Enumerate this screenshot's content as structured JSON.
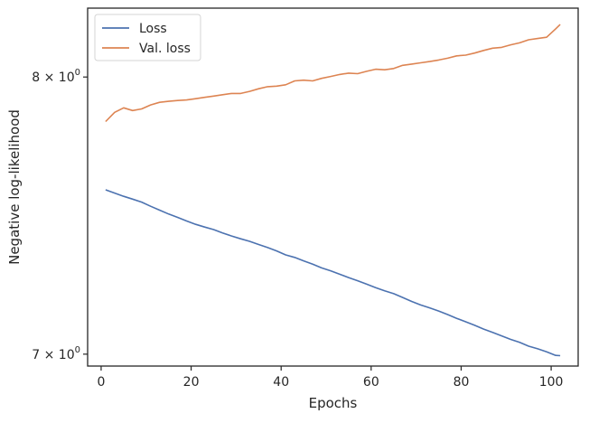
{
  "chart_data": {
    "type": "line",
    "title": "",
    "xlabel": "Epochs",
    "ylabel": "Negative log-likelihood",
    "yscale": "log",
    "xlim": [
      -3,
      106
    ],
    "ylim": [
      6.96,
      8.27
    ],
    "grid": false,
    "legend_position": "top-left",
    "xticks": [
      0,
      20,
      40,
      60,
      80,
      100
    ],
    "xtick_labels": [
      "0",
      "20",
      "40",
      "60",
      "80",
      "100"
    ],
    "yticks": [
      7,
      8
    ],
    "ytick_labels": [
      {
        "mantissa": "7",
        "base": "10",
        "exp": "0"
      },
      {
        "mantissa": "8",
        "base": "10",
        "exp": "0"
      }
    ],
    "series": [
      {
        "name": "Loss",
        "color": "#4c72b0",
        "x": [
          1,
          3,
          5,
          7,
          9,
          11,
          13,
          15,
          17,
          19,
          21,
          23,
          25,
          27,
          29,
          31,
          33,
          35,
          37,
          39,
          41,
          43,
          45,
          47,
          49,
          51,
          53,
          55,
          57,
          59,
          61,
          63,
          65,
          67,
          69,
          71,
          73,
          75,
          77,
          79,
          81,
          83,
          85,
          87,
          89,
          91,
          93,
          95,
          97,
          99,
          101,
          102
        ],
        "y": [
          7.577,
          7.565,
          7.553,
          7.543,
          7.532,
          7.517,
          7.503,
          7.489,
          7.477,
          7.464,
          7.452,
          7.442,
          7.433,
          7.421,
          7.41,
          7.4,
          7.391,
          7.38,
          7.369,
          7.357,
          7.343,
          7.334,
          7.322,
          7.31,
          7.297,
          7.287,
          7.275,
          7.263,
          7.252,
          7.24,
          7.228,
          7.217,
          7.207,
          7.194,
          7.18,
          7.168,
          7.158,
          7.147,
          7.135,
          7.122,
          7.11,
          7.098,
          7.085,
          7.074,
          7.062,
          7.05,
          7.04,
          7.027,
          7.018,
          7.008,
          6.996,
          6.995
        ]
      },
      {
        "name": "Val. loss",
        "color": "#dd8452",
        "x": [
          1,
          3,
          5,
          7,
          9,
          11,
          13,
          15,
          17,
          19,
          21,
          23,
          25,
          27,
          29,
          31,
          33,
          35,
          37,
          39,
          41,
          43,
          45,
          47,
          49,
          51,
          53,
          55,
          57,
          59,
          61,
          63,
          65,
          67,
          69,
          71,
          73,
          75,
          77,
          79,
          81,
          83,
          85,
          87,
          89,
          91,
          93,
          95,
          97,
          99,
          101,
          102
        ],
        "y": [
          7.83,
          7.865,
          7.882,
          7.872,
          7.878,
          7.893,
          7.903,
          7.907,
          7.91,
          7.912,
          7.917,
          7.922,
          7.927,
          7.932,
          7.937,
          7.937,
          7.945,
          7.955,
          7.963,
          7.965,
          7.97,
          7.985,
          7.988,
          7.985,
          7.995,
          8.002,
          8.01,
          8.015,
          8.013,
          8.022,
          8.03,
          8.028,
          8.033,
          8.045,
          8.05,
          8.055,
          8.06,
          8.066,
          8.073,
          8.082,
          8.085,
          8.093,
          8.103,
          8.112,
          8.115,
          8.125,
          8.133,
          8.145,
          8.15,
          8.155,
          8.188,
          8.205
        ]
      }
    ]
  }
}
